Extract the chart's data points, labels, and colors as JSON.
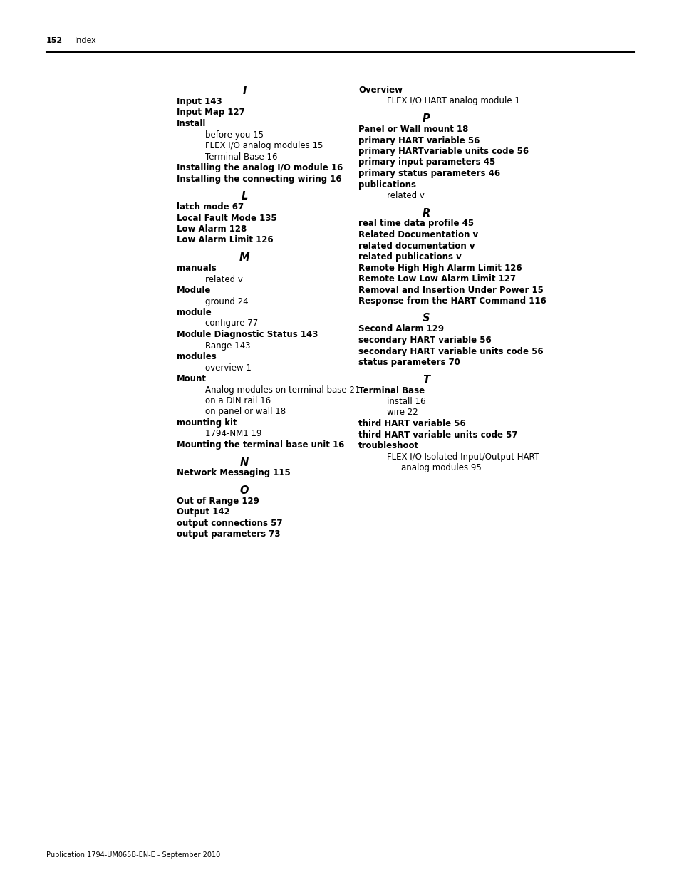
{
  "page_number": "152",
  "page_label": "Index",
  "footer": "Publication 1794-UM065B-EN-E - September 2010",
  "bg_color": "#ffffff",
  "text_color": "#000000",
  "sections": {
    "left": [
      {
        "type": "header",
        "text": "I"
      },
      {
        "type": "bold",
        "text": "Input 143"
      },
      {
        "type": "bold",
        "text": "Input Map 127"
      },
      {
        "type": "bold",
        "text": "Install"
      },
      {
        "type": "indent",
        "text": "before you 15"
      },
      {
        "type": "indent",
        "text": "FLEX I/O analog modules 15"
      },
      {
        "type": "indent",
        "text": "Terminal Base 16"
      },
      {
        "type": "bold",
        "text": "Installing the analog I/O module 16"
      },
      {
        "type": "bold",
        "text": "Installing the connecting wiring 16"
      },
      {
        "type": "spacer",
        "text": ""
      },
      {
        "type": "header",
        "text": "L"
      },
      {
        "type": "bold",
        "text": "latch mode 67"
      },
      {
        "type": "bold",
        "text": "Local Fault Mode 135"
      },
      {
        "type": "bold",
        "text": "Low Alarm 128"
      },
      {
        "type": "bold",
        "text": "Low Alarm Limit 126"
      },
      {
        "type": "spacer",
        "text": ""
      },
      {
        "type": "header",
        "text": "M"
      },
      {
        "type": "bold",
        "text": "manuals"
      },
      {
        "type": "indent",
        "text": "related v"
      },
      {
        "type": "bold",
        "text": "Module"
      },
      {
        "type": "indent",
        "text": "ground 24"
      },
      {
        "type": "bold",
        "text": "module"
      },
      {
        "type": "indent",
        "text": "configure 77"
      },
      {
        "type": "bold",
        "text": "Module Diagnostic Status 143"
      },
      {
        "type": "indent",
        "text": "Range 143"
      },
      {
        "type": "bold",
        "text": "modules"
      },
      {
        "type": "indent",
        "text": "overview 1"
      },
      {
        "type": "bold",
        "text": "Mount"
      },
      {
        "type": "indent",
        "text": "Analog modules on terminal base 21"
      },
      {
        "type": "indent",
        "text": "on a DIN rail 16"
      },
      {
        "type": "indent",
        "text": "on panel or wall 18"
      },
      {
        "type": "bold",
        "text": "mounting kit"
      },
      {
        "type": "indent",
        "text": "1794-NM1 19"
      },
      {
        "type": "bold",
        "text": "Mounting the terminal base unit 16"
      },
      {
        "type": "spacer",
        "text": ""
      },
      {
        "type": "header",
        "text": "N"
      },
      {
        "type": "bold",
        "text": "Network Messaging 115"
      },
      {
        "type": "spacer",
        "text": ""
      },
      {
        "type": "header",
        "text": "O"
      },
      {
        "type": "bold",
        "text": "Out of Range 129"
      },
      {
        "type": "bold",
        "text": "Output 142"
      },
      {
        "type": "bold",
        "text": "output connections 57"
      },
      {
        "type": "bold",
        "text": "output parameters 73"
      }
    ],
    "right": [
      {
        "type": "bold",
        "text": "Overview"
      },
      {
        "type": "indent",
        "text": "FLEX I/O HART analog module 1"
      },
      {
        "type": "spacer",
        "text": ""
      },
      {
        "type": "header",
        "text": "P"
      },
      {
        "type": "bold",
        "text": "Panel or Wall mount 18"
      },
      {
        "type": "bold",
        "text": "primary HART variable 56"
      },
      {
        "type": "bold",
        "text": "primary HARTvariable units code 56"
      },
      {
        "type": "bold",
        "text": "primary input parameters 45"
      },
      {
        "type": "bold",
        "text": "primary status parameters 46"
      },
      {
        "type": "bold",
        "text": "publications"
      },
      {
        "type": "indent",
        "text": "related v"
      },
      {
        "type": "spacer",
        "text": ""
      },
      {
        "type": "header",
        "text": "R"
      },
      {
        "type": "bold",
        "text": "real time data profile 45"
      },
      {
        "type": "bold",
        "text": "Related Documentation v"
      },
      {
        "type": "bold",
        "text": "related documentation v"
      },
      {
        "type": "bold",
        "text": "related publications v"
      },
      {
        "type": "bold",
        "text": "Remote High High Alarm Limit 126"
      },
      {
        "type": "bold",
        "text": "Remote Low Low Alarm Limit 127"
      },
      {
        "type": "bold",
        "text": "Removal and Insertion Under Power 15"
      },
      {
        "type": "bold",
        "text": "Response from the HART Command 116"
      },
      {
        "type": "spacer",
        "text": ""
      },
      {
        "type": "header",
        "text": "S"
      },
      {
        "type": "bold",
        "text": "Second Alarm 129"
      },
      {
        "type": "bold",
        "text": "secondary HART variable 56"
      },
      {
        "type": "bold",
        "text": "secondary HART variable units code 56"
      },
      {
        "type": "bold",
        "text": "status parameters 70"
      },
      {
        "type": "spacer",
        "text": ""
      },
      {
        "type": "header",
        "text": "T"
      },
      {
        "type": "bold",
        "text": "Terminal Base"
      },
      {
        "type": "indent",
        "text": "install 16"
      },
      {
        "type": "indent",
        "text": "wire 22"
      },
      {
        "type": "bold",
        "text": "third HART variable 56"
      },
      {
        "type": "bold",
        "text": "third HART variable units code 57"
      },
      {
        "type": "bold",
        "text": "troubleshoot"
      },
      {
        "type": "indent",
        "text": "FLEX I/O Isolated Input/Output HART"
      },
      {
        "type": "indent2",
        "text": "analog modules 95"
      }
    ]
  }
}
